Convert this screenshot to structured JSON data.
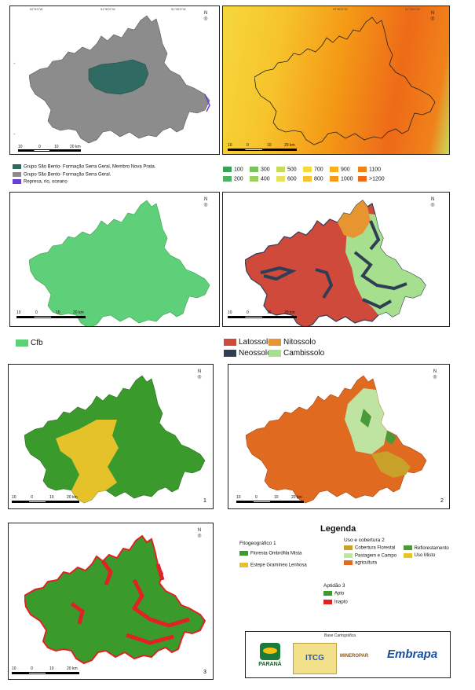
{
  "coords": {
    "top_a": "52°5'0\"W",
    "top_b": "51°50'0\"W",
    "top_c": "51°35'0\"W",
    "left_a": "24°45'0\"S",
    "left_b": "24°55'0\"S"
  },
  "scalebar": [
    "10",
    "0",
    "10",
    "20 km"
  ],
  "geology_legend": [
    {
      "label": "Grupo São Bento- Formação Serra Geral, Membro Nova Prata.",
      "color": "#2f6b63"
    },
    {
      "label": "Grupo São Bento- Formação Serra Geral.",
      "color": "#8c8c8c"
    },
    {
      "label": "Represa, rio, oceano",
      "color": "#6a3fd6"
    }
  ],
  "elevation_legend": [
    {
      "label": "100",
      "color": "#3aa05a"
    },
    {
      "label": "200",
      "color": "#4fb060"
    },
    {
      "label": "300",
      "color": "#78c060"
    },
    {
      "label": "400",
      "color": "#9ccf5e"
    },
    {
      "label": "500",
      "color": "#c7dc5a"
    },
    {
      "label": "600",
      "color": "#e5e35a"
    },
    {
      "label": "700",
      "color": "#f5d83c"
    },
    {
      "label": "800",
      "color": "#f7c32c"
    },
    {
      "label": "900",
      "color": "#f6b020"
    },
    {
      "label": "1000",
      "color": "#f49a16"
    },
    {
      "label": "1100",
      "color": "#f0821a"
    },
    {
      "label": ">1200",
      "color": "#ee6a18"
    }
  ],
  "climate_legend": [
    {
      "label": "Cfb",
      "color": "#5fd07a"
    }
  ],
  "soil_legend": [
    {
      "label": "Latossolo",
      "color": "#cf4a3a"
    },
    {
      "label": "Nitossolo",
      "color": "#e69530"
    },
    {
      "label": "Neossolo",
      "color": "#2f3d55"
    },
    {
      "label": "Cambissolo",
      "color": "#a6df8e"
    }
  ],
  "panel_numbers": {
    "veg": "1",
    "land": "2",
    "apt": "3"
  },
  "legenda": {
    "title": "Legenda",
    "fito_title": "Fitogeográfico",
    "fito_num": "1",
    "fito_items": [
      {
        "label": "Floresta Ombrófila Mista",
        "color": "#3a9a2c"
      },
      {
        "label": "Estepe Gramíneo Lenhosa",
        "color": "#e6c22a"
      }
    ],
    "uso_title": "Uso e cobertura",
    "uso_num": "2",
    "uso_items": [
      {
        "label": "Cobertura Florestal",
        "color": "#c9a02a"
      },
      {
        "label": "Reflorestamento",
        "color": "#4a9a3a"
      },
      {
        "label": "Pastagem e Campo",
        "color": "#bfe3a0"
      },
      {
        "label": "Uso Misto",
        "color": "#e6c52a"
      },
      {
        "label": "agricultura",
        "color": "#e06a20"
      }
    ],
    "apt_title": "Aptidão",
    "apt_num": "3",
    "apt_items": [
      {
        "label": "Apto",
        "color": "#3a9a2c"
      },
      {
        "label": "Inapto",
        "color": "#e02222"
      }
    ]
  },
  "base": {
    "title": "Base Cartográfica",
    "logos": [
      "PARANÁ",
      "ITCG",
      "MINEROPAR",
      "Embrapa"
    ]
  }
}
